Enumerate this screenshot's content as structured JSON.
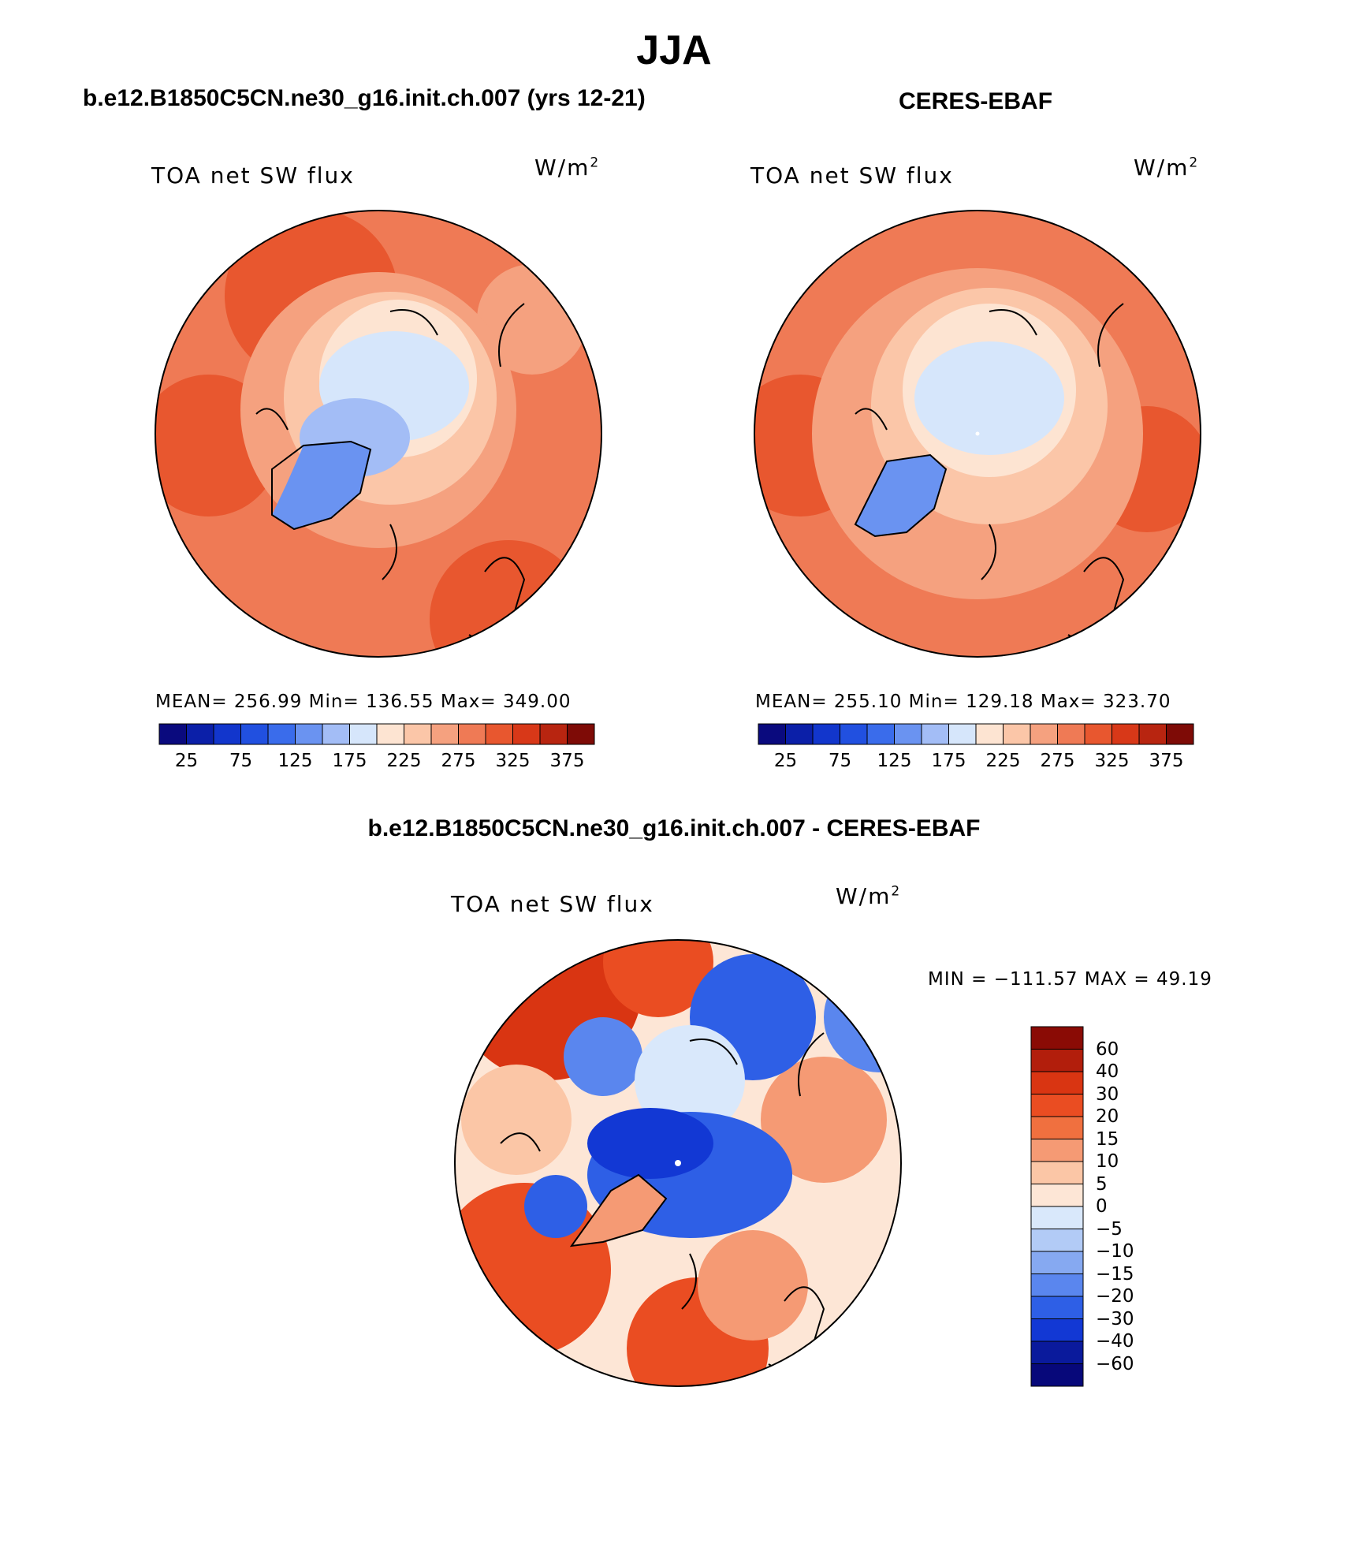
{
  "title": "JJA",
  "panels": [
    {
      "id": "model",
      "heading": "b.e12.B1850C5CN.ne30_g16.init.ch.007 (yrs 12-21)",
      "variable": "TOA net SW flux",
      "units_base": "W/m",
      "units_exp": "2",
      "stats": "MEAN= 256.99   Min= 136.55   Max= 349.00",
      "mean": 256.99,
      "min": 136.55,
      "max": 349.0
    },
    {
      "id": "obs",
      "heading": "CERES-EBAF",
      "variable": "TOA net SW flux",
      "units_base": "W/m",
      "units_exp": "2",
      "stats": "MEAN= 255.10   Min= 129.18   Max= 323.70",
      "mean": 255.1,
      "min": 129.18,
      "max": 323.7
    }
  ],
  "abs_colorbar": {
    "ticks": [
      "25",
      "75",
      "125",
      "175",
      "225",
      "275",
      "325",
      "375"
    ],
    "colors": [
      "#0a0a7e",
      "#0b1fa8",
      "#1236cc",
      "#2150e0",
      "#3a6ceb",
      "#6a93f1",
      "#a3bdf6",
      "#d6e6fb",
      "#fde4d2",
      "#fbc6a8",
      "#f5a17f",
      "#ef7a55",
      "#e8572f",
      "#d83818",
      "#b82510",
      "#7e0b06"
    ]
  },
  "difference": {
    "heading": "b.e12.B1850C5CN.ne30_g16.init.ch.007 - CERES-EBAF",
    "variable": "TOA net SW flux",
    "units_base": "W/m",
    "units_exp": "2",
    "stats": "MIN = −111.57 MAX =   49.19",
    "min": -111.57,
    "max": 49.19,
    "colorbar_labels": [
      "60",
      "40",
      "30",
      "20",
      "15",
      "10",
      "5",
      "0",
      "−5",
      "−10",
      "−15",
      "−20",
      "−30",
      "−40",
      "−60"
    ],
    "colorbar_colors": [
      "#8a0b05",
      "#b21e0c",
      "#d93512",
      "#ea4d22",
      "#f0703f",
      "#f59a74",
      "#fbc6a6",
      "#fde6d6",
      "#d9e8fb",
      "#b2cbf6",
      "#86a9f1",
      "#5a86ee",
      "#2e5fe6",
      "#1238d4",
      "#0a1a9c",
      "#07087a"
    ]
  }
}
